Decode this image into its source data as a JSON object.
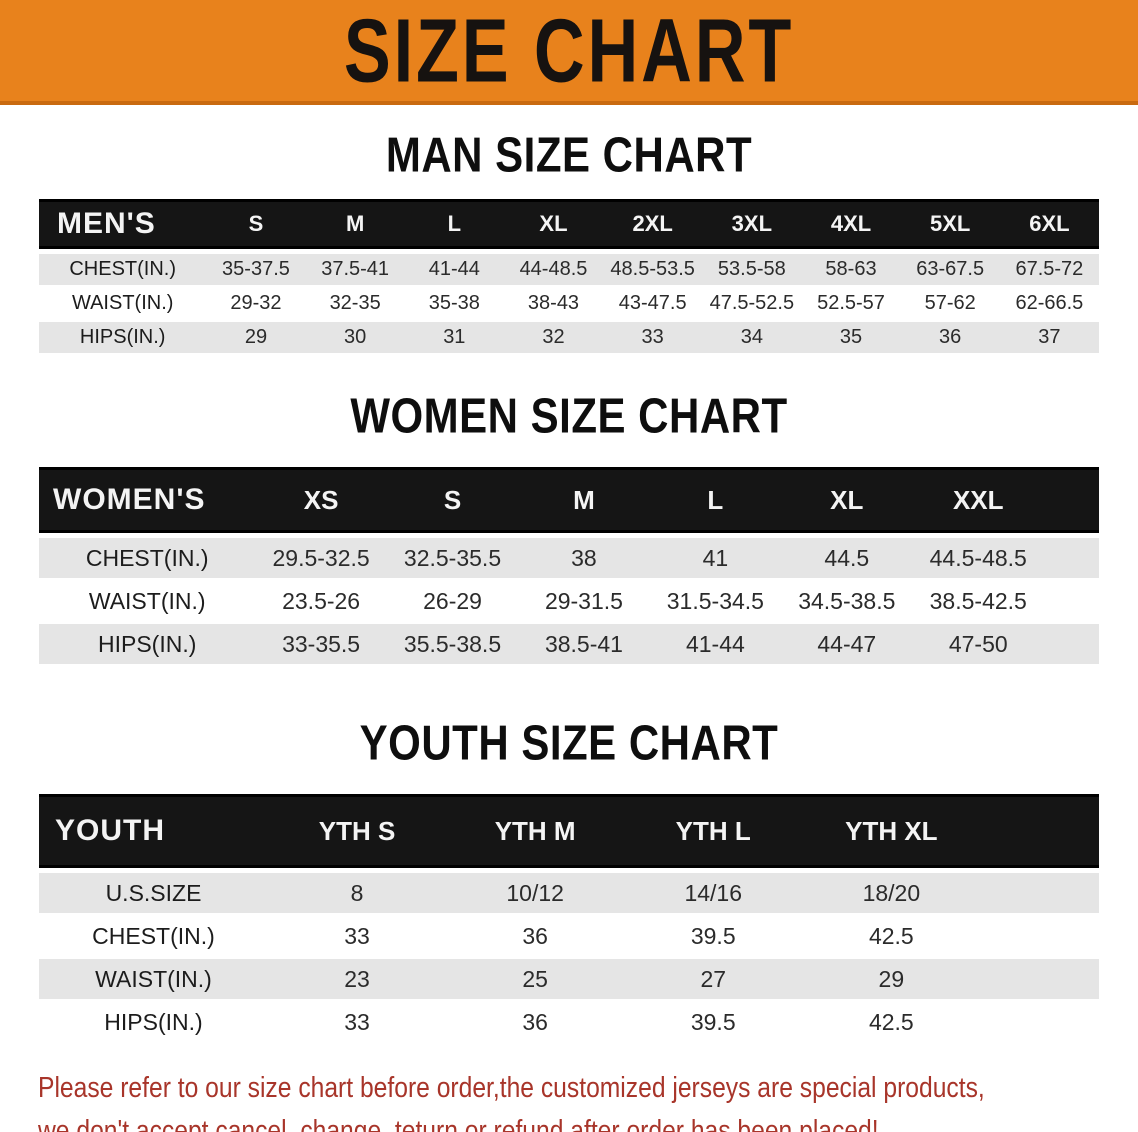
{
  "colors": {
    "banner_bg": "#e8821c",
    "banner_edge": "#c96a10",
    "header_bar": "#151515",
    "row_stripe": "#e5e5e5",
    "footer_text": "#a8352a"
  },
  "banner": {
    "title": "SIZE CHART"
  },
  "sections": [
    {
      "heading": "MAN SIZE CHART",
      "table": {
        "corner_label": "MEN'S",
        "columns": [
          "S",
          "M",
          "L",
          "XL",
          "2XL",
          "3XL",
          "4XL",
          "5XL",
          "6XL"
        ],
        "rows": [
          {
            "label": "CHEST(IN.)",
            "values": [
              "35-37.5",
              "37.5-41",
              "41-44",
              "44-48.5",
              "48.5-53.5",
              "53.5-58",
              "58-63",
              "63-67.5",
              "67.5-72"
            ]
          },
          {
            "label": "WAIST(IN.)",
            "values": [
              "29-32",
              "32-35",
              "35-38",
              "38-43",
              "43-47.5",
              "47.5-52.5",
              "52.5-57",
              "57-62",
              "62-66.5"
            ]
          },
          {
            "label": "HIPS(IN.)",
            "values": [
              "29",
              "30",
              "31",
              "32",
              "33",
              "34",
              "35",
              "36",
              "37"
            ]
          }
        ]
      }
    },
    {
      "heading": "WOMEN SIZE CHART",
      "table": {
        "corner_label": "WOMEN'S",
        "columns": [
          "XS",
          "S",
          "M",
          "L",
          "XL",
          "XXL"
        ],
        "rows": [
          {
            "label": "CHEST(IN.)",
            "values": [
              "29.5-32.5",
              "32.5-35.5",
              "38",
              "41",
              "44.5",
              "44.5-48.5"
            ]
          },
          {
            "label": "WAIST(IN.)",
            "values": [
              "23.5-26",
              "26-29",
              "29-31.5",
              "31.5-34.5",
              "34.5-38.5",
              "38.5-42.5"
            ]
          },
          {
            "label": "HIPS(IN.)",
            "values": [
              "33-35.5",
              "35.5-38.5",
              "38.5-41",
              "41-44",
              "44-47",
              "47-50"
            ]
          }
        ]
      }
    },
    {
      "heading": "YOUTH SIZE CHART",
      "table": {
        "corner_label": "YOUTH",
        "columns": [
          "YTH S",
          "YTH M",
          "YTH L",
          "YTH XL"
        ],
        "rows": [
          {
            "label": "U.S.SIZE",
            "values": [
              "8",
              "10/12",
              "14/16",
              "18/20"
            ]
          },
          {
            "label": "CHEST(IN.)",
            "values": [
              "33",
              "36",
              "39.5",
              "42.5"
            ]
          },
          {
            "label": "WAIST(IN.)",
            "values": [
              "23",
              "25",
              "27",
              "29"
            ]
          },
          {
            "label": "HIPS(IN.)",
            "values": [
              "33",
              "36",
              "39.5",
              "42.5"
            ]
          }
        ]
      }
    }
  ],
  "footer": {
    "line1": "Please refer to our size chart before order,the customized jerseys are special products,",
    "line2": "we don't accept cancel, change, teturn or refund after order has been placed!"
  }
}
